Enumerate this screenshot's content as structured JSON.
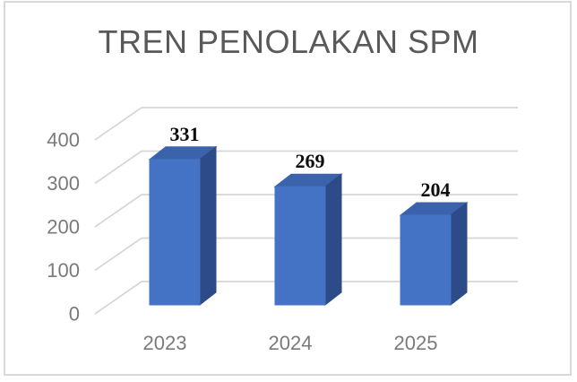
{
  "frame": {
    "border_color": "#d8d8d8",
    "background": "#ffffff"
  },
  "chart_data": {
    "type": "bar",
    "variant": "3d-column",
    "title": "TREN PENOLAKAN SPM",
    "categories": [
      "2023",
      "2024",
      "2025"
    ],
    "values": [
      331,
      269,
      204
    ],
    "yticks": [
      0,
      100,
      200,
      300,
      400
    ],
    "ylim": [
      0,
      400
    ],
    "xlabel": "",
    "ylabel": "",
    "grid": true,
    "legend": false,
    "data_labels_shown": true,
    "colors": {
      "bar_front": "#4472c4",
      "bar_top": "#3b63ac",
      "bar_side": "#2c4b88",
      "gridline": "#d6d6d6",
      "axis_label": "#7a7a7a",
      "data_label": "#0d0d0d",
      "title": "#595959"
    }
  }
}
